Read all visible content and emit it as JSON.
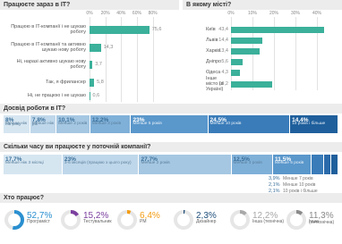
{
  "chart_data": [
    {
      "type": "bar",
      "title": "Працюєте зараз в IT?",
      "color": "#3bb09a",
      "grid": true,
      "categories": [
        "Працюю в IT-компанії і не шукаю роботу",
        "Працюю в IT-компанії та активно шукаю нову роботу",
        "Ні, наразі активно шукаю нову роботу",
        "Так, я фрилансер",
        "Ні, не працюю і не шукаю"
      ],
      "values": [
        75.6,
        14.3,
        3.7,
        5.8,
        0.6
      ],
      "value_labels": [
        "75,6",
        "14,3",
        "3,7",
        "5,8",
        "0,6"
      ],
      "xlim": [
        0,
        85
      ],
      "xticks": [
        {
          "value": 0,
          "label": "0%"
        },
        {
          "value": 20,
          "label": "20%"
        },
        {
          "value": 40,
          "label": "40%"
        },
        {
          "value": 60,
          "label": "60%"
        },
        {
          "value": 80,
          "label": "80%"
        }
      ]
    },
    {
      "type": "bar",
      "title": "В якому місті?",
      "color": "#3bb09a",
      "grid": true,
      "categories": [
        "Київ",
        "Львів",
        "Харків",
        "Дніпро",
        "Одеса",
        "Інше місто (в Україні)"
      ],
      "values": [
        43.4,
        14.4,
        13.4,
        5.6,
        4.3,
        19.2
      ],
      "value_labels": [
        "43,4",
        "14,4",
        "13,4",
        "5,6",
        "4,3",
        "19,2"
      ],
      "xlim": [
        0,
        45
      ],
      "xticks": [
        {
          "value": 0,
          "label": "0%"
        },
        {
          "value": 10,
          "label": "10%"
        },
        {
          "value": 20,
          "label": "20%"
        },
        {
          "value": 30,
          "label": "30%"
        },
        {
          "value": 40,
          "label": "40%"
        }
      ]
    },
    {
      "type": "stacked-bar",
      "title": "Досвід роботи в IT?",
      "categories": [
        "Менше ніж пів року",
        "Менше ніж рік",
        "Менше 2 років",
        "Менше 3 років",
        "Менше 5 років",
        "Менше 10 років",
        "10 років і більше"
      ],
      "values": [
        8,
        7.8,
        10.1,
        12.2,
        23,
        24.5,
        14.4
      ],
      "value_labels": [
        "8%",
        "7,8%",
        "10,1%",
        "12,2%",
        "23%",
        "24,5%",
        "14,4%"
      ],
      "colors": [
        "#d6e6f1",
        "#bfd7ea",
        "#a5c7e2",
        "#7fb0d8",
        "#5a97cb",
        "#3a7cb9",
        "#1f5f9c"
      ]
    },
    {
      "type": "stacked-bar",
      "title": "Скільки часу ви працюєте у поточній компанії?",
      "categories": [
        "Менше ніж 3 місяці",
        "3-6 місяців (працюю з цього року)",
        "Менше 2 років",
        "Менше 3 років",
        "Менше 5 років",
        "Менше 7 років",
        "Менше 10 років",
        "10 років і більше"
      ],
      "values": [
        17.7,
        23,
        27.7,
        12.5,
        11.5,
        3.9,
        2.1,
        2.1
      ],
      "value_labels": [
        "17,7%",
        "23%",
        "27,7%",
        "12,5%",
        "11,5%",
        "3,9%",
        "2,1%",
        "2,1%"
      ],
      "colors": [
        "#d6e6f1",
        "#bfd7ea",
        "#a5c7e2",
        "#7fb0d8",
        "#5a97cb",
        "#3a7cb9",
        "#2a6aaa",
        "#1f5f9c"
      ]
    },
    {
      "type": "donut",
      "title": "Хто працює?",
      "categories": [
        "Програміст",
        "Тестувальник",
        "PM",
        "Дизайнер",
        "Інша (технічна)",
        "Інша (нетехнічна)"
      ],
      "values": [
        52.7,
        15.2,
        6.4,
        2.3,
        12.2,
        11.3
      ],
      "value_labels": [
        "52,7%",
        "15,2%",
        "6,4%",
        "2,3%",
        "12,2%",
        "11,3%"
      ],
      "colors": [
        "#2a8fd0",
        "#7b3f9e",
        "#f39c12",
        "#1f4f7b",
        "#a8a8a8",
        "#8a8a8a"
      ]
    }
  ]
}
